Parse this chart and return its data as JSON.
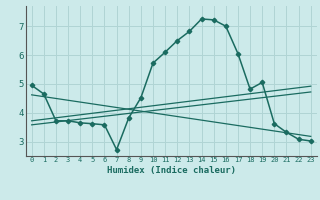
{
  "xlabel": "Humidex (Indice chaleur)",
  "background_color": "#cceaea",
  "grid_color": "#b0d4d4",
  "line_color": "#1a6b60",
  "xlim": [
    -0.5,
    23.5
  ],
  "ylim": [
    2.5,
    7.7
  ],
  "xticks": [
    0,
    1,
    2,
    3,
    4,
    5,
    6,
    7,
    8,
    9,
    10,
    11,
    12,
    13,
    14,
    15,
    16,
    17,
    18,
    19,
    20,
    21,
    22,
    23
  ],
  "yticks": [
    3,
    4,
    5,
    6,
    7
  ],
  "main_x": [
    0,
    1,
    2,
    3,
    4,
    5,
    6,
    7,
    8,
    9,
    10,
    11,
    12,
    13,
    14,
    15,
    16,
    17,
    18,
    19,
    20,
    21,
    22,
    23
  ],
  "main_y": [
    4.95,
    4.65,
    3.72,
    3.72,
    3.65,
    3.62,
    3.58,
    2.72,
    3.82,
    4.52,
    5.72,
    6.1,
    6.5,
    6.82,
    7.25,
    7.22,
    7.0,
    6.05,
    4.82,
    5.05,
    3.62,
    3.32,
    3.08,
    3.02
  ],
  "line2_x": [
    0,
    23
  ],
  "line2_y": [
    3.58,
    4.72
  ],
  "line3_x": [
    0,
    23
  ],
  "line3_y": [
    3.72,
    4.92
  ],
  "line4_x": [
    0,
    23
  ],
  "line4_y": [
    4.62,
    3.18
  ]
}
